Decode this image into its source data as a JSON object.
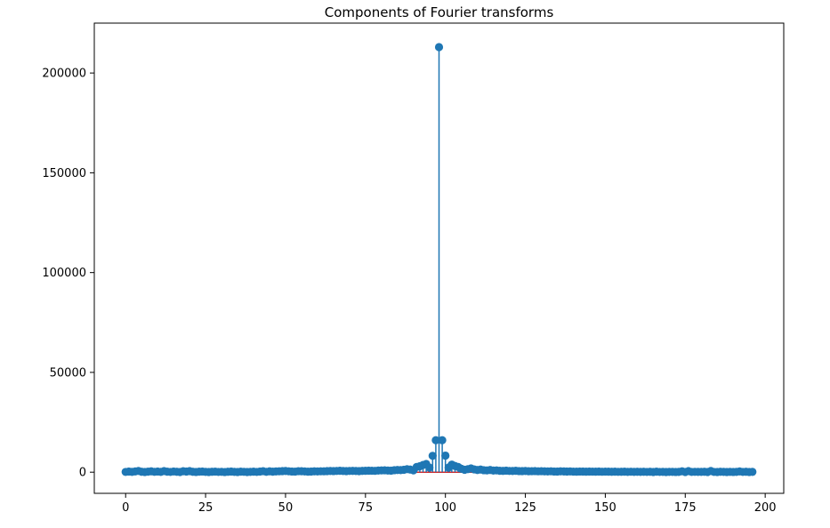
{
  "chart_data": {
    "type": "stem",
    "title": "Components of Fourier transforms",
    "xlabel": "",
    "ylabel": "",
    "xlim": [
      -9.8,
      205.8
    ],
    "ylim": [
      -10600,
      225000
    ],
    "xticks": [
      0,
      25,
      50,
      75,
      100,
      125,
      150,
      175,
      200
    ],
    "xtick_labels": [
      "0",
      "25",
      "50",
      "75",
      "100",
      "125",
      "150",
      "175",
      "200"
    ],
    "yticks": [
      0,
      50000,
      100000,
      150000,
      200000
    ],
    "ytick_labels": [
      "0",
      "50000",
      "100000",
      "150000",
      "200000"
    ],
    "grid": false,
    "colors": {
      "stem": "#1f77b4",
      "marker": "#1f77b4",
      "baseline": "#d62728"
    },
    "x": [
      0,
      1,
      2,
      3,
      4,
      5,
      6,
      7,
      8,
      9,
      10,
      11,
      12,
      13,
      14,
      15,
      16,
      17,
      18,
      19,
      20,
      21,
      22,
      23,
      24,
      25,
      26,
      27,
      28,
      29,
      30,
      31,
      32,
      33,
      34,
      35,
      36,
      37,
      38,
      39,
      40,
      41,
      42,
      43,
      44,
      45,
      46,
      47,
      48,
      49,
      50,
      51,
      52,
      53,
      54,
      55,
      56,
      57,
      58,
      59,
      60,
      61,
      62,
      63,
      64,
      65,
      66,
      67,
      68,
      69,
      70,
      71,
      72,
      73,
      74,
      75,
      76,
      77,
      78,
      79,
      80,
      81,
      82,
      83,
      84,
      85,
      86,
      87,
      88,
      89,
      90,
      91,
      92,
      93,
      94,
      95,
      96,
      97,
      98,
      99,
      100,
      101,
      102,
      103,
      104,
      105,
      106,
      107,
      108,
      109,
      110,
      111,
      112,
      113,
      114,
      115,
      116,
      117,
      118,
      119,
      120,
      121,
      122,
      123,
      124,
      125,
      126,
      127,
      128,
      129,
      130,
      131,
      132,
      133,
      134,
      135,
      136,
      137,
      138,
      139,
      140,
      141,
      142,
      143,
      144,
      145,
      146,
      147,
      148,
      149,
      150,
      151,
      152,
      153,
      154,
      155,
      156,
      157,
      158,
      159,
      160,
      161,
      162,
      163,
      164,
      165,
      166,
      167,
      168,
      169,
      170,
      171,
      172,
      173,
      174,
      175,
      176,
      177,
      178,
      179,
      180,
      181,
      182,
      183,
      184,
      185,
      186,
      187,
      188,
      189,
      190,
      191,
      192,
      193,
      194,
      195,
      196
    ],
    "values": [
      120,
      300,
      150,
      380,
      620,
      200,
      90,
      260,
      410,
      180,
      330,
      140,
      560,
      240,
      120,
      350,
      210,
      90,
      470,
      300,
      520,
      190,
      110,
      260,
      330,
      150,
      90,
      210,
      280,
      120,
      170,
      60,
      200,
      310,
      140,
      100,
      240,
      180,
      90,
      150,
      260,
      120,
      320,
      500,
      180,
      420,
      250,
      380,
      440,
      520,
      580,
      460,
      340,
      290,
      510,
      480,
      360,
      250,
      300,
      420,
      380,
      460,
      440,
      520,
      600,
      560,
      620,
      700,
      580,
      540,
      620,
      660,
      580,
      520,
      640,
      700,
      760,
      720,
      680,
      800,
      900,
      950,
      820,
      780,
      1000,
      1100,
      1050,
      1200,
      1500,
      1300,
      900,
      2600,
      3000,
      3600,
      4100,
      2300,
      8200,
      16000,
      213000,
      16000,
      8300,
      2300,
      3800,
      3100,
      2600,
      1700,
      1200,
      1500,
      1900,
      1400,
      1100,
      1300,
      1000,
      900,
      1100,
      800,
      900,
      700,
      660,
      780,
      620,
      580,
      700,
      560,
      520,
      600,
      480,
      510,
      560,
      440,
      500,
      420,
      380,
      460,
      340,
      300,
      420,
      360,
      300,
      380,
      280,
      260,
      340,
      300,
      240,
      320,
      280,
      260,
      300,
      220,
      280,
      250,
      190,
      240,
      180,
      200,
      260,
      160,
      230,
      150,
      210,
      140,
      200,
      120,
      190,
      100,
      250,
      120,
      160,
      90,
      140,
      130,
      110,
      150,
      460,
      100,
      540,
      120,
      170,
      130,
      150,
      210,
      100,
      600,
      120,
      80,
      190,
      140,
      90,
      160,
      110,
      130,
      380,
      120,
      200,
      90,
      160
    ]
  }
}
